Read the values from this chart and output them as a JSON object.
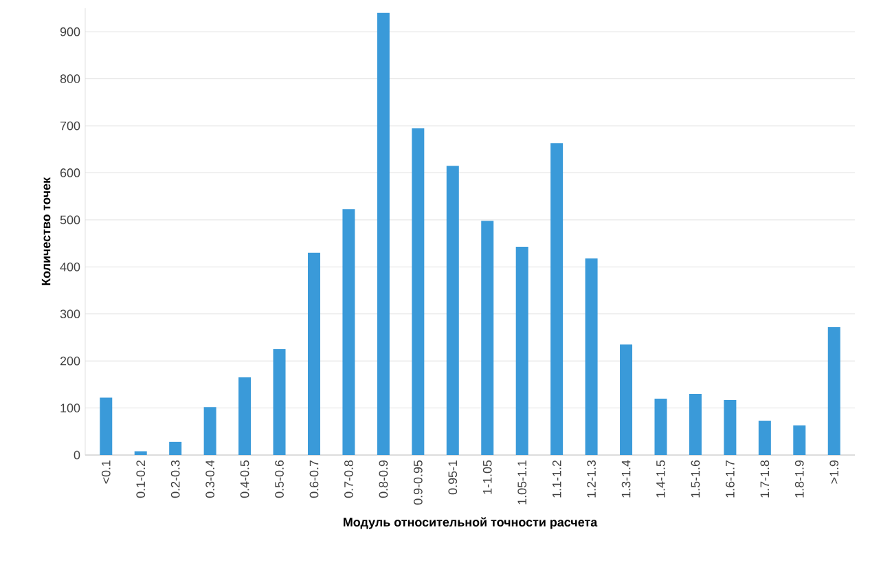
{
  "chart_data": {
    "type": "bar",
    "xlabel": "Модуль относительной точности расчета",
    "ylabel": "Количество точек",
    "categories": [
      "<0.1",
      "0.1-0.2",
      "0.2-0.3",
      "0.3-0.4",
      "0.4-0.5",
      "0.5-0.6",
      "0.6-0.7",
      "0.7-0.8",
      "0.8-0.9",
      "0.9-0.95",
      "0.95-1",
      "1-1.05",
      "1.05-1.1",
      "1.1-1.2",
      "1.2-1.3",
      "1.3-1.4",
      "1.4-1.5",
      "1.5-1.6",
      "1.6-1.7",
      "1.7-1.8",
      "1.8-1.9",
      ">1.9"
    ],
    "values": [
      122,
      8,
      28,
      102,
      165,
      225,
      430,
      523,
      940,
      695,
      615,
      498,
      443,
      663,
      418,
      235,
      120,
      130,
      117,
      73,
      63,
      272
    ],
    "color": "#3a9ad9",
    "ylim": [
      0,
      950
    ],
    "yticks": [
      0,
      100,
      200,
      300,
      400,
      500,
      600,
      700,
      800,
      900
    ],
    "grid": "y"
  }
}
